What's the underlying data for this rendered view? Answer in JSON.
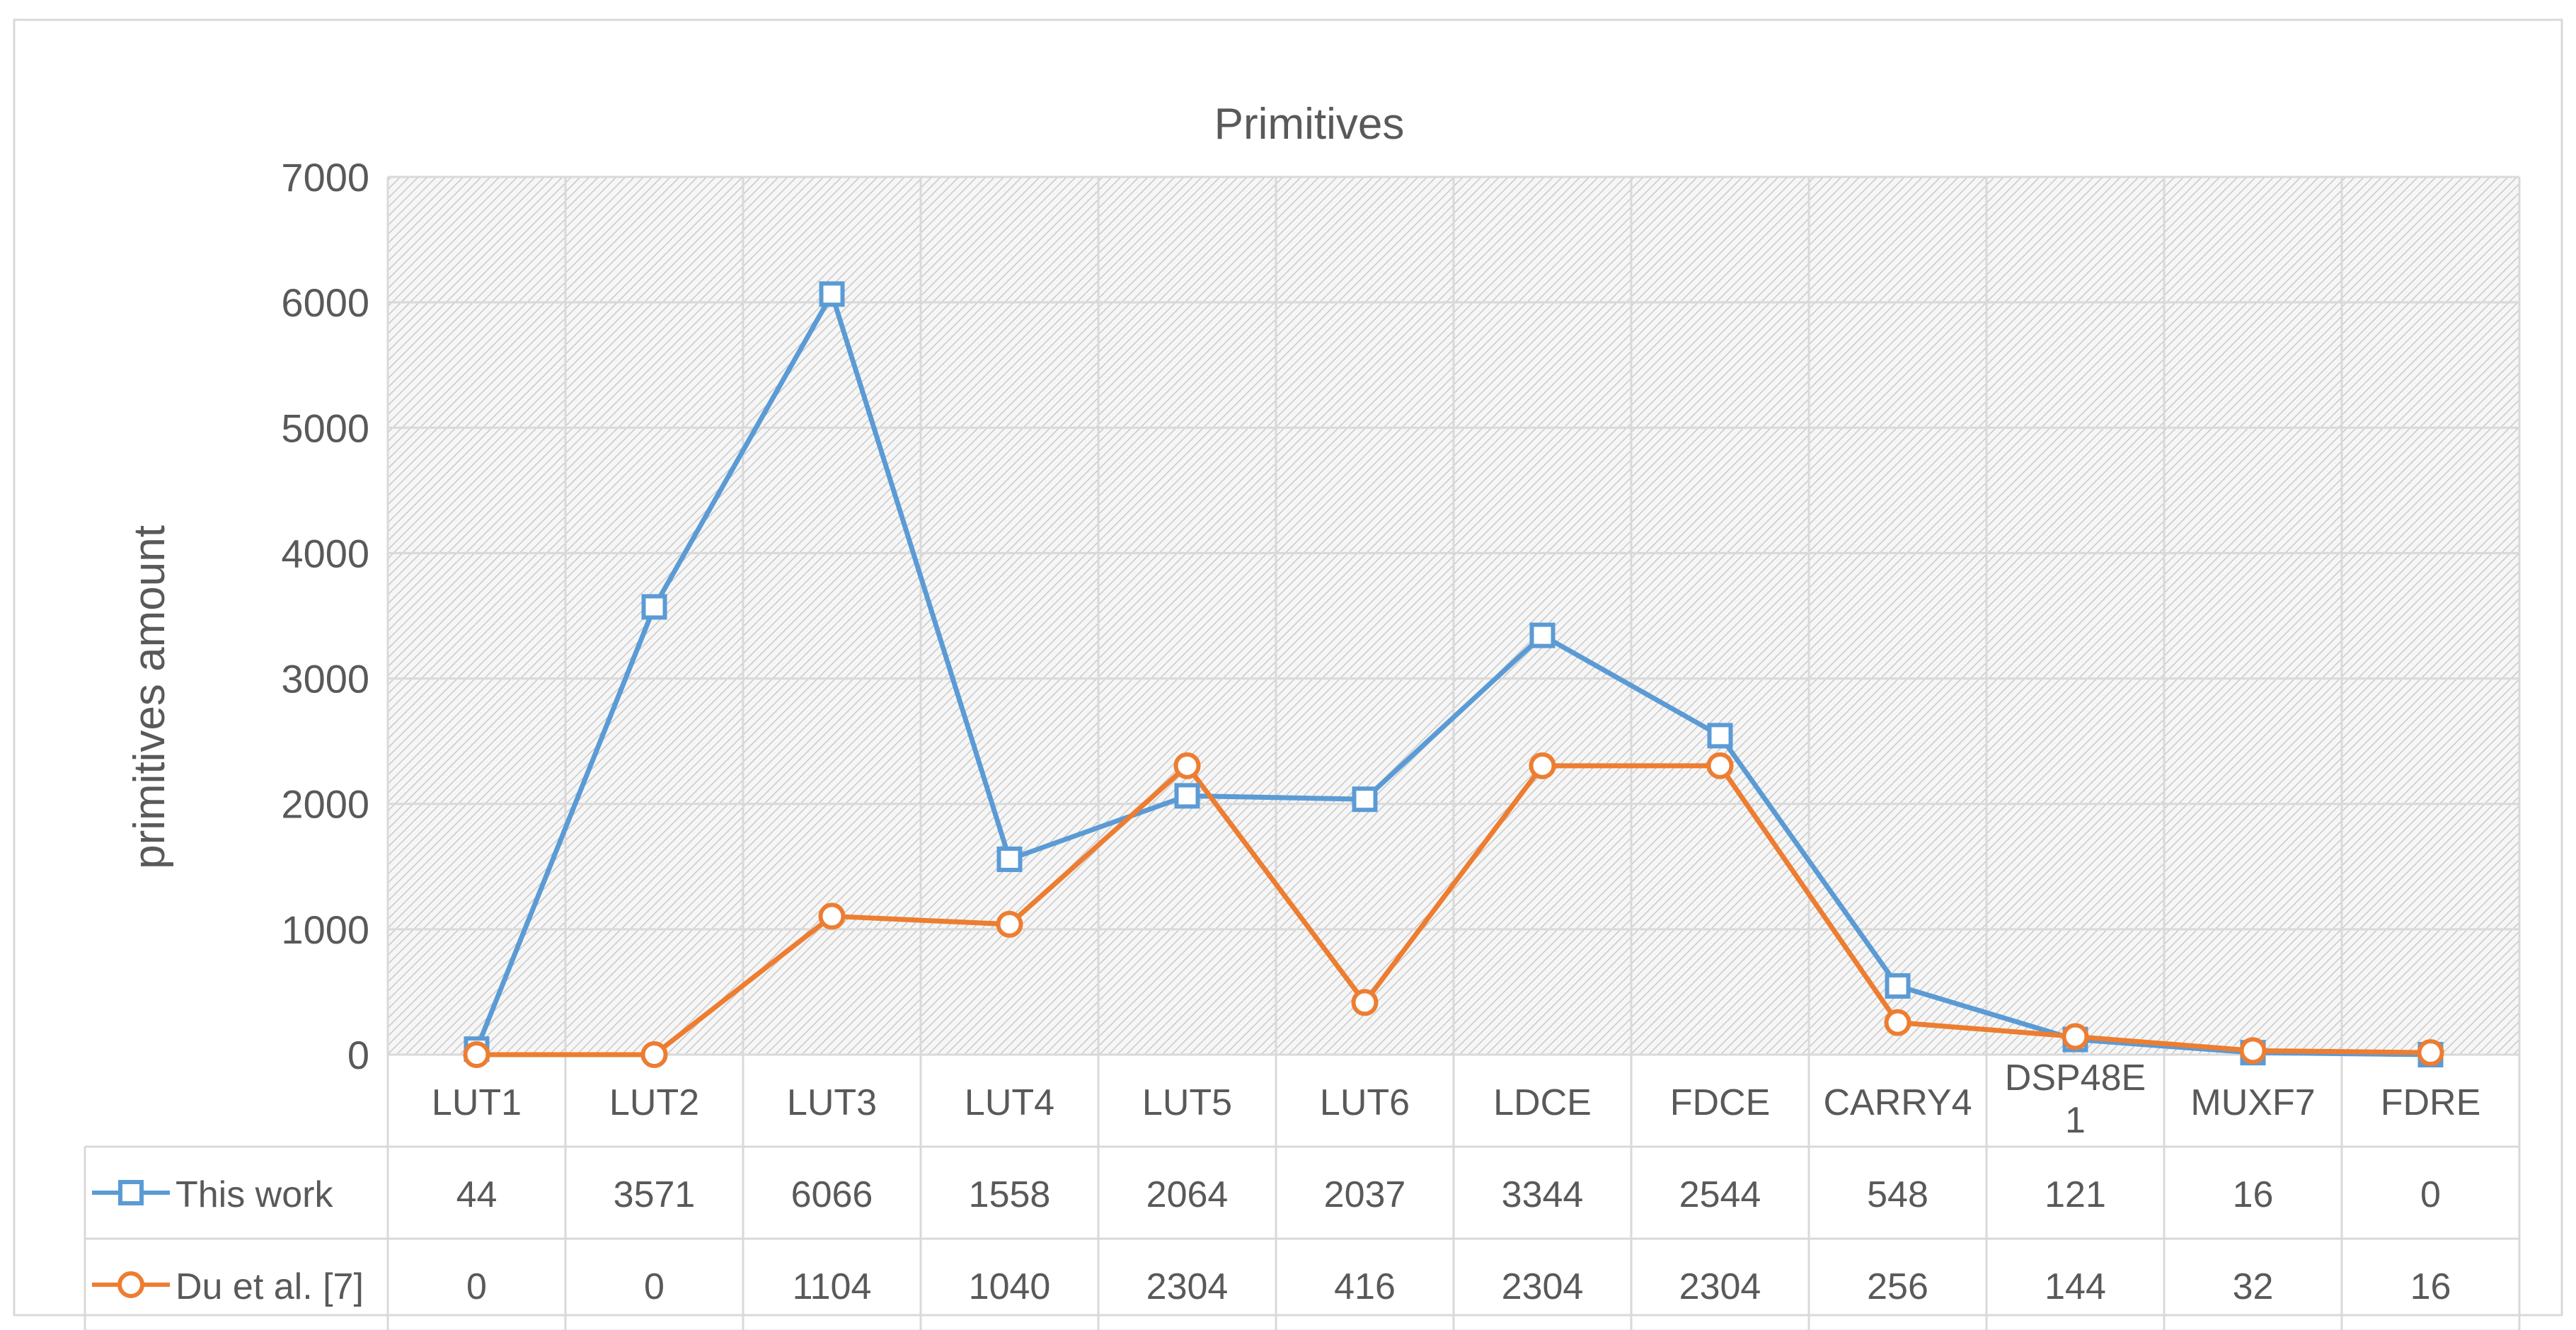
{
  "chart_data": {
    "type": "line",
    "title": "Primitives",
    "xlabel": "",
    "ylabel": "primitives amount",
    "ylim": [
      0,
      7000
    ],
    "yticks": [
      0,
      1000,
      2000,
      3000,
      4000,
      5000,
      6000,
      7000
    ],
    "grid": true,
    "legend": "data-table-bottom-left",
    "categories": [
      "LUT1",
      "LUT2",
      "LUT3",
      "LUT4",
      "LUT5",
      "LUT6",
      "LDCE",
      "FDCE",
      "CARRY4",
      "DSP48E1",
      "MUXF7",
      "FDRE"
    ],
    "category_display": [
      [
        "LUT1"
      ],
      [
        "LUT2"
      ],
      [
        "LUT3"
      ],
      [
        "LUT4"
      ],
      [
        "LUT5"
      ],
      [
        "LUT6"
      ],
      [
        "LDCE"
      ],
      [
        "FDCE"
      ],
      [
        "CARRY4"
      ],
      [
        "DSP48E",
        "1"
      ],
      [
        "MUXF7"
      ],
      [
        "FDRE"
      ]
    ],
    "series": [
      {
        "name": "This work",
        "color": "#5B9BD5",
        "marker": "square",
        "values": [
          44,
          3571,
          6066,
          1558,
          2064,
          2037,
          3344,
          2544,
          548,
          121,
          16,
          0
        ]
      },
      {
        "name": "Du et al. [7]",
        "color": "#ED7D31",
        "marker": "circle",
        "values": [
          0,
          0,
          1104,
          1040,
          2304,
          416,
          2304,
          2304,
          256,
          144,
          32,
          16
        ]
      }
    ]
  }
}
